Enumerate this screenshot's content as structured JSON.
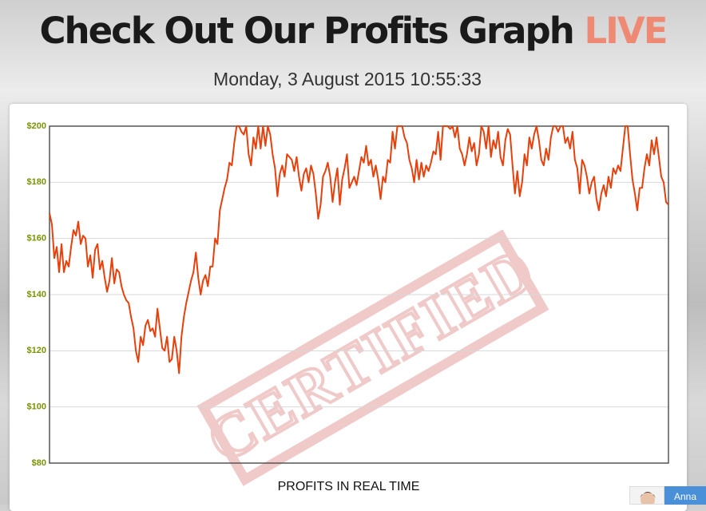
{
  "header": {
    "title": "Check Out Our Profits Graph",
    "title_highlight": "LIVE",
    "date": "Monday, 3 August 2015 10:55:33"
  },
  "chart_data": {
    "type": "line",
    "x_label": "PROFITS IN REAL TIME",
    "stamp": "CERTIFIED",
    "series": [
      {
        "name": "Profits",
        "color": "#e8400c",
        "values": [
          169,
          165,
          153,
          157,
          148,
          158,
          148,
          152,
          150,
          157,
          163,
          161,
          166,
          158,
          161,
          160,
          150,
          154,
          146,
          156,
          158,
          149,
          152,
          146,
          141,
          145,
          153,
          144,
          149,
          148,
          143,
          140,
          138,
          137,
          132,
          128,
          120,
          116,
          125,
          122,
          129,
          131,
          127,
          128,
          125,
          135,
          128,
          121,
          120,
          125,
          116,
          117,
          125,
          120,
          112,
          125,
          132,
          137,
          141,
          145,
          148,
          155,
          146,
          140,
          145,
          147,
          143,
          150,
          150,
          160,
          158,
          170,
          174,
          178,
          181,
          187,
          186,
          194,
          200,
          200,
          198,
          197,
          200,
          190,
          186,
          196,
          192,
          200,
          192,
          200,
          193,
          200,
          197,
          190,
          185,
          175,
          183,
          186,
          182,
          190,
          189,
          188,
          184,
          189,
          182,
          177,
          183,
          185,
          180,
          186,
          183,
          176,
          167,
          172,
          182,
          184,
          187,
          182,
          173,
          180,
          185,
          172,
          181,
          185,
          190,
          178,
          180,
          182,
          179,
          184,
          189,
          187,
          193,
          186,
          188,
          182,
          186,
          181,
          174,
          182,
          180,
          188,
          187,
          198,
          192,
          200,
          200,
          200,
          196,
          194,
          188,
          185,
          180,
          188,
          181,
          187,
          182,
          186,
          184,
          187,
          191,
          190,
          198,
          188,
          200,
          200,
          200,
          199,
          200,
          196,
          200,
          192,
          190,
          186,
          190,
          196,
          191,
          194,
          186,
          190,
          200,
          198,
          192,
          200,
          189,
          195,
          192,
          198,
          189,
          186,
          195,
          199,
          197,
          186,
          176,
          184,
          175,
          180,
          190,
          186,
          196,
          192,
          197,
          200,
          195,
          188,
          186,
          192,
          188,
          196,
          200,
          200,
          198,
          200,
          200,
          194,
          196,
          192,
          198,
          188,
          185,
          176,
          188,
          186,
          182,
          176,
          180,
          182,
          174,
          170,
          176,
          179,
          175,
          182,
          178,
          185,
          183,
          186,
          184,
          192,
          200,
          200,
          190,
          181,
          176,
          170,
          178,
          178,
          185,
          190,
          186,
          195,
          190,
          196,
          189,
          182,
          180,
          173,
          172
        ]
      }
    ],
    "ylim": [
      80,
      200
    ],
    "yticks": [
      {
        "value": 80,
        "label": "$80"
      },
      {
        "value": 100,
        "label": "$100"
      },
      {
        "value": 120,
        "label": "$120"
      },
      {
        "value": 140,
        "label": "$140"
      },
      {
        "value": 160,
        "label": "$160"
      },
      {
        "value": 180,
        "label": "$180"
      },
      {
        "value": 200,
        "label": "$200"
      }
    ],
    "grid": true
  },
  "chat": {
    "agent": "Anna"
  }
}
